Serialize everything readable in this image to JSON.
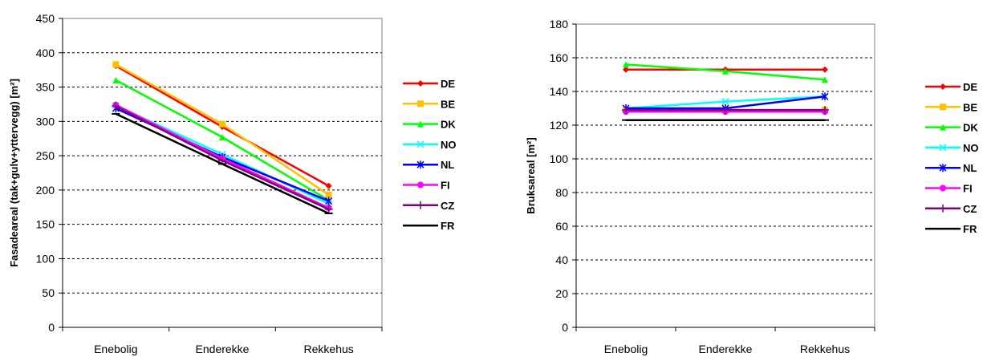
{
  "chart_data": [
    {
      "type": "line",
      "title": "",
      "xlabel": "",
      "ylabel": "Fasadeareal (tak+gulv+yttervegg) [m²]",
      "categories": [
        "Enebolig",
        "Enderekke",
        "Rekkehus"
      ],
      "ylim": [
        0,
        450
      ],
      "yticks": [
        0,
        50,
        100,
        150,
        200,
        250,
        300,
        350,
        400,
        450
      ],
      "grid": true,
      "legend_position": "right",
      "series": [
        {
          "name": "DE",
          "color": "#ff0000",
          "marker": "diamond",
          "values": [
            381,
            292,
            206
          ]
        },
        {
          "name": "BE",
          "color": "#ffc000",
          "marker": "square",
          "values": [
            383,
            296,
            193
          ]
        },
        {
          "name": "DK",
          "color": "#00ff00",
          "marker": "triangle",
          "values": [
            360,
            277,
            185
          ]
        },
        {
          "name": "NO",
          "color": "#00ffff",
          "marker": "x",
          "values": [
            323,
            252,
            180
          ]
        },
        {
          "name": "NL",
          "color": "#0000ff",
          "marker": "asterisk",
          "values": [
            319,
            248,
            184
          ]
        },
        {
          "name": "FI",
          "color": "#ff00ff",
          "marker": "circle",
          "values": [
            324,
            246,
            174
          ]
        },
        {
          "name": "CZ",
          "color": "#800080",
          "marker": "plus",
          "values": [
            322,
            243,
            172
          ]
        },
        {
          "name": "FR",
          "color": "#000000",
          "marker": "dash",
          "values": [
            311,
            238,
            166
          ]
        }
      ]
    },
    {
      "type": "line",
      "title": "",
      "xlabel": "",
      "ylabel": "Bruksareal [m²]",
      "categories": [
        "Enebolig",
        "Enderekke",
        "Rekkehus"
      ],
      "ylim": [
        0,
        180
      ],
      "yticks": [
        0,
        20,
        40,
        60,
        80,
        100,
        120,
        140,
        160,
        180
      ],
      "grid": true,
      "legend_position": "right",
      "series": [
        {
          "name": "DE",
          "color": "#ff0000",
          "marker": "diamond",
          "values": [
            153,
            153,
            153
          ]
        },
        {
          "name": "BE",
          "color": "#ffc000",
          "marker": "square",
          "values": [
            129,
            129,
            129
          ]
        },
        {
          "name": "DK",
          "color": "#00ff00",
          "marker": "triangle",
          "values": [
            156,
            152,
            147
          ]
        },
        {
          "name": "NO",
          "color": "#00ffff",
          "marker": "x",
          "values": [
            130,
            134,
            137
          ]
        },
        {
          "name": "NL",
          "color": "#0000ff",
          "marker": "asterisk",
          "values": [
            130,
            130,
            137
          ]
        },
        {
          "name": "FI",
          "color": "#ff00ff",
          "marker": "circle",
          "values": [
            128,
            128,
            128
          ]
        },
        {
          "name": "CZ",
          "color": "#800080",
          "marker": "plus",
          "values": [
            129,
            129,
            129
          ]
        },
        {
          "name": "FR",
          "color": "#000000",
          "marker": "dash",
          "values": [
            123,
            123,
            123
          ]
        }
      ]
    }
  ]
}
